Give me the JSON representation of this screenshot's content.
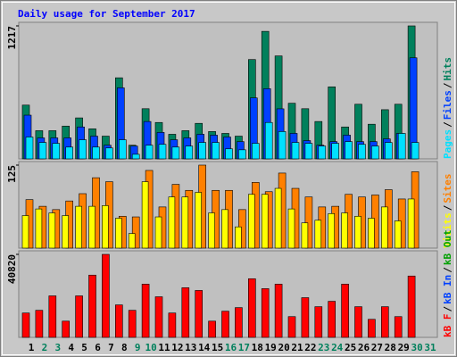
{
  "chart_data": [
    {
      "type": "bar",
      "title": "Daily usage for September 2017",
      "legend_separator": "/",
      "ylim": [
        0,
        1217
      ],
      "yticks": [
        1217
      ],
      "series": [
        {
          "name": "Hits",
          "color": "#00805c",
          "values": [
            492,
            258,
            258,
            300,
            375,
            275,
            208,
            742,
            125,
            459,
            333,
            225,
            258,
            325,
            250,
            233,
            208,
            909,
            1167,
            942,
            509,
            459,
            342,
            659,
            292,
            500,
            317,
            450,
            500,
            1217,
            0
          ]
        },
        {
          "name": "Files",
          "color": "#0040ff",
          "values": [
            400,
            192,
            192,
            192,
            292,
            208,
            125,
            650,
            117,
            342,
            242,
            175,
            192,
            225,
            217,
            200,
            158,
            558,
            642,
            458,
            233,
            167,
            125,
            158,
            217,
            158,
            158,
            183,
            233,
            925,
            0
          ]
        },
        {
          "name": "Pages",
          "color": "#00e0ff",
          "values": [
            200,
            150,
            142,
            108,
            175,
            108,
            100,
            175,
            42,
            125,
            133,
            108,
            117,
            150,
            150,
            92,
            83,
            142,
            333,
            250,
            150,
            142,
            117,
            142,
            158,
            133,
            117,
            150,
            233,
            150,
            0
          ]
        }
      ]
    },
    {
      "type": "bar",
      "legend_separator": "/",
      "ylim": [
        0,
        125
      ],
      "yticks": [
        125
      ],
      "series": [
        {
          "name": "Sites",
          "color": "#ff8000",
          "values": [
            73,
            63,
            58,
            71,
            82,
            106,
            100,
            48,
            47,
            117,
            62,
            96,
            87,
            125,
            87,
            87,
            58,
            99,
            85,
            113,
            90,
            77,
            62,
            63,
            81,
            77,
            80,
            88,
            74,
            115,
            0
          ]
        },
        {
          "name": "Visits",
          "color": "#ffff00",
          "values": [
            49,
            59,
            53,
            49,
            63,
            63,
            64,
            45,
            22,
            100,
            47,
            77,
            77,
            84,
            53,
            58,
            32,
            81,
            81,
            90,
            59,
            38,
            42,
            52,
            53,
            48,
            45,
            62,
            41,
            74,
            0
          ]
        }
      ]
    },
    {
      "type": "bar",
      "legend_separator": "/",
      "ylim": [
        0,
        40820
      ],
      "yticks": [
        40820
      ],
      "categories": [
        "1",
        "2",
        "3",
        "4",
        "5",
        "6",
        "7",
        "8",
        "9",
        "10",
        "11",
        "12",
        "13",
        "14",
        "15",
        "16",
        "17",
        "18",
        "19",
        "20",
        "21",
        "22",
        "23",
        "24",
        "25",
        "26",
        "27",
        "28",
        "29",
        "30",
        "31"
      ],
      "category_colors": [
        "#000000",
        "#00805c",
        "#00805c",
        "#000000",
        "#000000",
        "#000000",
        "#000000",
        "#000000",
        "#00805c",
        "#00805c",
        "#000000",
        "#000000",
        "#000000",
        "#000000",
        "#000000",
        "#00805c",
        "#00805c",
        "#000000",
        "#000000",
        "#000000",
        "#000000",
        "#000000",
        "#00805c",
        "#00805c",
        "#000000",
        "#000000",
        "#000000",
        "#000000",
        "#000000",
        "#00805c",
        "#00805c"
      ],
      "series": [
        {
          "name": "kB F",
          "color": "#ff0000",
          "values": [
            11980,
            13311,
            20410,
            7987,
            20410,
            30615,
            40820,
            15973,
            13311,
            26178,
            19966,
            11980,
            24403,
            23072,
            7987,
            12867,
            14642,
            28840,
            23959,
            26178,
            10205,
            19522,
            15086,
            17748,
            26178,
            15086,
            8874,
            15086,
            10205,
            30171,
            0
          ]
        },
        {
          "name": "kB In",
          "color": "#0040ff",
          "values": [
            0,
            0,
            0,
            0,
            0,
            0,
            0,
            0,
            0,
            0,
            0,
            0,
            0,
            0,
            0,
            0,
            0,
            0,
            0,
            0,
            0,
            0,
            0,
            0,
            0,
            0,
            0,
            0,
            0,
            0,
            0
          ]
        },
        {
          "name": "kB Out",
          "color": "#00a000",
          "values": [
            0,
            0,
            0,
            0,
            0,
            0,
            0,
            0,
            0,
            0,
            0,
            0,
            0,
            0,
            0,
            0,
            0,
            0,
            0,
            0,
            0,
            0,
            0,
            0,
            0,
            0,
            0,
            0,
            0,
            0,
            0
          ]
        }
      ]
    }
  ]
}
